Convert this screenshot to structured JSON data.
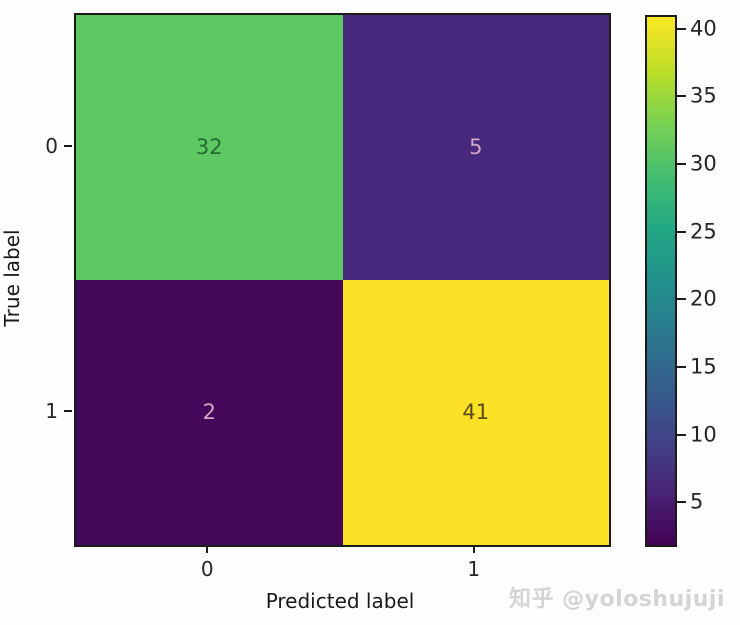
{
  "chart_data": {
    "type": "heatmap",
    "subtype": "confusion_matrix",
    "title": "",
    "xlabel": "Predicted label",
    "ylabel": "True label",
    "x_categories": [
      "0",
      "1"
    ],
    "y_categories": [
      "0",
      "1"
    ],
    "matrix": [
      [
        32,
        5
      ],
      [
        2,
        41
      ]
    ],
    "cell_colors": [
      [
        "#5ec962",
        "#46287c"
      ],
      [
        "#45095c",
        "#fbe125"
      ]
    ],
    "cell_text_colors": [
      [
        "#256b31",
        "#cfa6c4"
      ],
      [
        "#cfa6c4",
        "#5d4a16"
      ]
    ],
    "colormap": "viridis",
    "colorbar": {
      "vmin": 2,
      "vmax": 41,
      "ticks": [
        5,
        10,
        15,
        20,
        25,
        30,
        35,
        40
      ],
      "gradient_stops": [
        "#440154",
        "#482475",
        "#414487",
        "#355f8d",
        "#2a788e",
        "#21918c",
        "#22a884",
        "#44bf70",
        "#7ad151",
        "#bddf26",
        "#fde725"
      ]
    },
    "grid": false,
    "legend": "colorbar-right"
  },
  "watermark": {
    "text": "知乎 @yoloshujuji"
  }
}
